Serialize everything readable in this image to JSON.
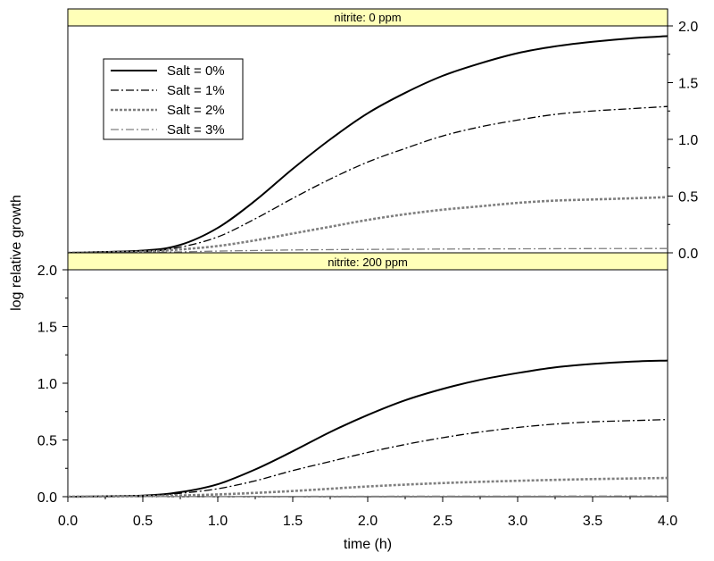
{
  "chart_data": {
    "type": "line",
    "xlabel": "time (h)",
    "ylabel": "log relative growth",
    "xlim": [
      0,
      4
    ],
    "ylim": [
      0,
      2
    ],
    "x_ticks": [
      0.0,
      0.5,
      1.0,
      1.5,
      2.0,
      2.5,
      3.0,
      3.5,
      4.0
    ],
    "y_ticks": [
      0.0,
      0.5,
      1.0,
      1.5,
      2.0
    ],
    "legend_position": "top-left (upper panel)",
    "grid": false,
    "panels": [
      {
        "strip_label": "nitrite: 0 ppm",
        "y_axis_side": "right",
        "series": [
          {
            "name": "Salt = 0%",
            "style": "solid",
            "color": "#000000",
            "x": [
              0,
              0.5,
              0.75,
              1.0,
              1.25,
              1.5,
              1.75,
              2.0,
              2.25,
              2.5,
              2.75,
              3.0,
              3.25,
              3.5,
              3.75,
              4.0
            ],
            "y": [
              0,
              0.02,
              0.07,
              0.22,
              0.46,
              0.74,
              1.0,
              1.23,
              1.41,
              1.56,
              1.67,
              1.76,
              1.82,
              1.86,
              1.89,
              1.91
            ]
          },
          {
            "name": "Salt = 1%",
            "style": "dashdot",
            "color": "#000000",
            "x": [
              0,
              0.5,
              0.75,
              1.0,
              1.25,
              1.5,
              1.75,
              2.0,
              2.25,
              2.5,
              2.75,
              3.0,
              3.25,
              3.5,
              3.75,
              4.0
            ],
            "y": [
              0,
              0.01,
              0.05,
              0.14,
              0.3,
              0.48,
              0.65,
              0.8,
              0.92,
              1.03,
              1.11,
              1.17,
              1.22,
              1.25,
              1.27,
              1.29
            ]
          },
          {
            "name": "Salt = 2%",
            "style": "dotted",
            "color": "#7f7f7f",
            "x": [
              0,
              0.5,
              0.75,
              1.0,
              1.25,
              1.5,
              1.75,
              2.0,
              2.25,
              2.5,
              2.75,
              3.0,
              3.25,
              3.5,
              3.75,
              4.0
            ],
            "y": [
              0,
              0.01,
              0.03,
              0.06,
              0.11,
              0.17,
              0.23,
              0.29,
              0.34,
              0.38,
              0.41,
              0.44,
              0.46,
              0.47,
              0.48,
              0.49
            ]
          },
          {
            "name": "Salt = 3%",
            "style": "dashdot",
            "color": "#7f7f7f",
            "x": [
              0,
              0.5,
              1.0,
              1.5,
              2.0,
              2.5,
              3.0,
              3.5,
              4.0
            ],
            "y": [
              0,
              0.003,
              0.015,
              0.025,
              0.03,
              0.033,
              0.035,
              0.037,
              0.038
            ]
          }
        ]
      },
      {
        "strip_label": "nitrite: 200 ppm",
        "y_axis_side": "left",
        "series": [
          {
            "name": "Salt = 0%",
            "style": "solid",
            "color": "#000000",
            "x": [
              0,
              0.5,
              0.75,
              1.0,
              1.25,
              1.5,
              1.75,
              2.0,
              2.25,
              2.5,
              2.75,
              3.0,
              3.25,
              3.5,
              3.75,
              4.0
            ],
            "y": [
              0,
              0.01,
              0.04,
              0.11,
              0.24,
              0.4,
              0.57,
              0.72,
              0.85,
              0.95,
              1.03,
              1.09,
              1.14,
              1.17,
              1.19,
              1.2
            ]
          },
          {
            "name": "Salt = 1%",
            "style": "dashdot",
            "color": "#000000",
            "x": [
              0,
              0.5,
              0.75,
              1.0,
              1.25,
              1.5,
              1.75,
              2.0,
              2.25,
              2.5,
              2.75,
              3.0,
              3.25,
              3.5,
              3.75,
              4.0
            ],
            "y": [
              0,
              0.01,
              0.03,
              0.07,
              0.14,
              0.23,
              0.31,
              0.39,
              0.46,
              0.52,
              0.57,
              0.61,
              0.64,
              0.66,
              0.67,
              0.68
            ]
          },
          {
            "name": "Salt = 2%",
            "style": "dotted",
            "color": "#7f7f7f",
            "x": [
              0,
              0.5,
              1.0,
              1.5,
              2.0,
              2.5,
              3.0,
              3.5,
              4.0
            ],
            "y": [
              0,
              0.005,
              0.02,
              0.05,
              0.09,
              0.12,
              0.14,
              0.155,
              0.165
            ]
          },
          {
            "name": "Salt = 3%",
            "style": "dashdot",
            "color": "#7f7f7f",
            "x": [
              0,
              1.0,
              2.0,
              3.0,
              4.0
            ],
            "y": [
              0,
              0.002,
              0.004,
              0.005,
              0.006
            ]
          }
        ]
      }
    ]
  }
}
